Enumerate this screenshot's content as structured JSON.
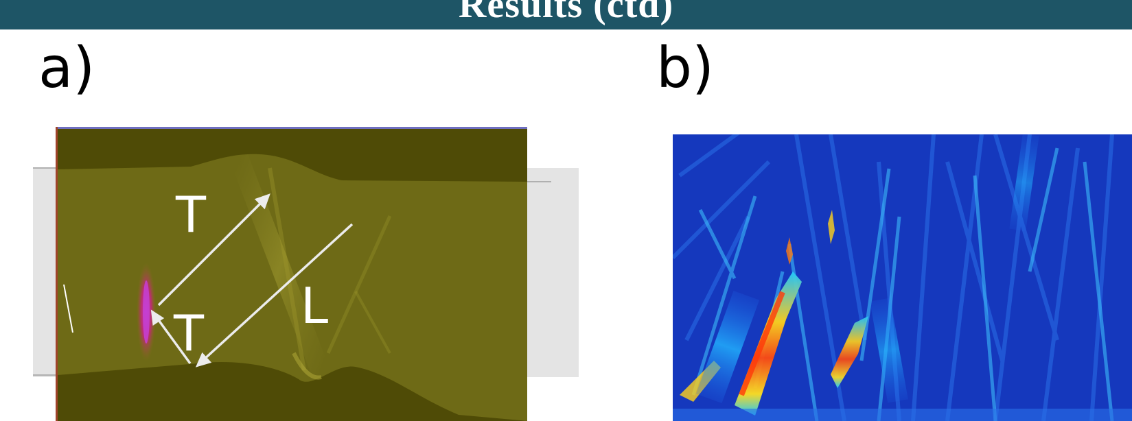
{
  "header": {
    "title": "Results (ctd)"
  },
  "panels": {
    "a": {
      "label": "a)",
      "annotations": [
        "T",
        "T",
        "L"
      ]
    },
    "b": {
      "label": "b)"
    }
  },
  "colors": {
    "header_bg": "#1e5566",
    "header_text": "#ffffff",
    "medium_olive": "#6e6a16",
    "dark_olive": "#4f4b06",
    "heatmap_base": "#1a3fc8"
  }
}
